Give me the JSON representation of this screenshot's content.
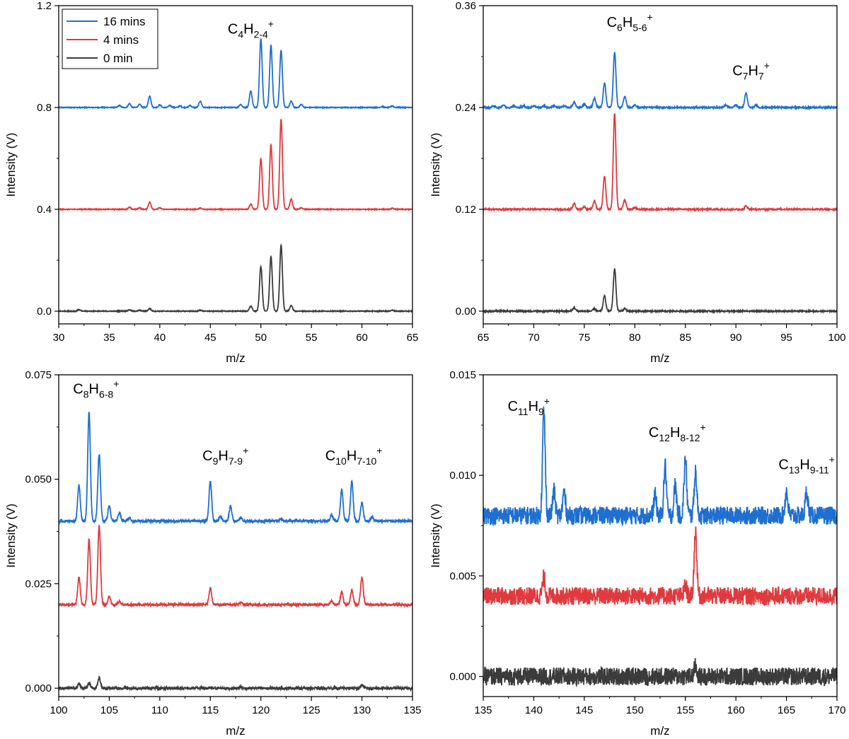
{
  "colors": {
    "16 mins": "#1f6fd1",
    "4 mins": "#e03a3e",
    "0 min": "#3b3b3b"
  },
  "legend": {
    "entries": [
      "16 mins",
      "4 mins",
      "0 min"
    ]
  },
  "chart_data": [
    {
      "type": "line",
      "xlabel": "m/z",
      "ylabel": "Intensity (V)",
      "xlim": [
        30,
        65
      ],
      "ylim": [
        -0.05,
        1.2
      ],
      "xticks": [
        "30",
        "35",
        "40",
        "45",
        "50",
        "55",
        "60",
        "65"
      ],
      "yticks": [
        "0.0",
        "0.4",
        "0.8",
        "1.2"
      ],
      "legend": "top-left",
      "series": [
        {
          "name": "16 mins",
          "baseline": 0.8,
          "noise": 0.0015,
          "peaks": [
            [
              36,
              0.008
            ],
            [
              37,
              0.015
            ],
            [
              38,
              0.012
            ],
            [
              39,
              0.045
            ],
            [
              40,
              0.01
            ],
            [
              41,
              0.008
            ],
            [
              42,
              0.006
            ],
            [
              43,
              0.008
            ],
            [
              44,
              0.025
            ],
            [
              48,
              0.012
            ],
            [
              49,
              0.065
            ],
            [
              50,
              0.27
            ],
            [
              51,
              0.245
            ],
            [
              52,
              0.225
            ],
            [
              53,
              0.025
            ],
            [
              54,
              0.012
            ],
            [
              62,
              0.004
            ],
            [
              63,
              0.006
            ]
          ]
        },
        {
          "name": "4 mins",
          "baseline": 0.4,
          "noise": 0.0015,
          "peaks": [
            [
              37,
              0.008
            ],
            [
              38,
              0.006
            ],
            [
              39,
              0.028
            ],
            [
              40,
              0.006
            ],
            [
              44,
              0.005
            ],
            [
              49,
              0.02
            ],
            [
              50,
              0.2
            ],
            [
              51,
              0.255
            ],
            [
              52,
              0.355
            ],
            [
              53,
              0.04
            ],
            [
              54,
              0.006
            ],
            [
              63,
              0.004
            ]
          ]
        },
        {
          "name": "0 min",
          "baseline": 0.0,
          "noise": 0.0015,
          "peaks": [
            [
              32,
              0.006
            ],
            [
              37,
              0.005
            ],
            [
              38,
              0.004
            ],
            [
              39,
              0.01
            ],
            [
              44,
              0.004
            ],
            [
              49,
              0.02
            ],
            [
              50,
              0.175
            ],
            [
              51,
              0.215
            ],
            [
              52,
              0.26
            ],
            [
              53,
              0.022
            ],
            [
              63,
              0.004
            ]
          ]
        }
      ],
      "annotations": [
        {
          "x": 49,
          "y": 1.09,
          "base": "C",
          "parts": [
            [
              "4",
              "sub"
            ],
            [
              "H",
              ""
            ],
            [
              "2-4",
              "sub"
            ],
            [
              "+",
              "sup"
            ]
          ]
        }
      ]
    },
    {
      "type": "line",
      "xlabel": "m/z",
      "ylabel": "Intensity (V)",
      "xlim": [
        65,
        100
      ],
      "ylim": [
        -0.015,
        0.36
      ],
      "xticks": [
        "65",
        "70",
        "75",
        "80",
        "85",
        "90",
        "95",
        "100"
      ],
      "yticks": [
        "0.00",
        "0.12",
        "0.24",
        "0.36"
      ],
      "series": [
        {
          "name": "16 mins",
          "baseline": 0.24,
          "noise": 0.0008,
          "peaks": [
            [
              66,
              0.002
            ],
            [
              67,
              0.003
            ],
            [
              68,
              0.002
            ],
            [
              69,
              0.002
            ],
            [
              70,
              0.002
            ],
            [
              71,
              0.002
            ],
            [
              72,
              0.002
            ],
            [
              73,
              0.002
            ],
            [
              74,
              0.006
            ],
            [
              75,
              0.004
            ],
            [
              76,
              0.011
            ],
            [
              77,
              0.029
            ],
            [
              78,
              0.065
            ],
            [
              79,
              0.013
            ],
            [
              80,
              0.003
            ],
            [
              89,
              0.003
            ],
            [
              90,
              0.003
            ],
            [
              91,
              0.017
            ],
            [
              92,
              0.003
            ]
          ]
        },
        {
          "name": "4 mins",
          "baseline": 0.12,
          "noise": 0.0008,
          "peaks": [
            [
              74,
              0.007
            ],
            [
              75,
              0.003
            ],
            [
              76,
              0.01
            ],
            [
              77,
              0.039
            ],
            [
              78,
              0.113
            ],
            [
              79,
              0.011
            ],
            [
              80,
              0.002
            ],
            [
              91,
              0.004
            ]
          ]
        },
        {
          "name": "0 min",
          "baseline": 0.0,
          "noise": 0.0008,
          "peaks": [
            [
              74,
              0.004
            ],
            [
              76,
              0.003
            ],
            [
              77,
              0.018
            ],
            [
              78,
              0.05
            ],
            [
              79,
              0.003
            ]
          ]
        }
      ],
      "annotations": [
        {
          "x": 79.5,
          "y": 0.335,
          "base": "C",
          "parts": [
            [
              "6",
              "sub"
            ],
            [
              "H",
              ""
            ],
            [
              "5-6",
              "sub"
            ],
            [
              "+",
              "sup"
            ]
          ]
        },
        {
          "x": 91.5,
          "y": 0.278,
          "base": "C",
          "parts": [
            [
              "7",
              "sub"
            ],
            [
              "H",
              ""
            ],
            [
              "7",
              "sub"
            ],
            [
              "+",
              "sup"
            ]
          ]
        }
      ]
    },
    {
      "type": "line",
      "xlabel": "m/z",
      "ylabel": "Intensity (V)",
      "xlim": [
        100,
        135
      ],
      "ylim": [
        -0.002,
        0.075
      ],
      "xticks": [
        "100",
        "105",
        "110",
        "115",
        "120",
        "125",
        "130",
        "135"
      ],
      "yticks": [
        "0.000",
        "0.025",
        "0.050",
        "0.075"
      ],
      "series": [
        {
          "name": "16 mins",
          "baseline": 0.04,
          "noise": 0.0003,
          "peaks": [
            [
              102,
              0.0085
            ],
            [
              103,
              0.026
            ],
            [
              104,
              0.016
            ],
            [
              105,
              0.0035
            ],
            [
              106,
              0.002
            ],
            [
              107,
              0.0008
            ],
            [
              115,
              0.0095
            ],
            [
              116,
              0.001
            ],
            [
              117,
              0.0035
            ],
            [
              118,
              0.0008
            ],
            [
              122,
              0.0005
            ],
            [
              127,
              0.0015
            ],
            [
              128,
              0.0075
            ],
            [
              129,
              0.0095
            ],
            [
              130,
              0.0045
            ],
            [
              131,
              0.001
            ]
          ]
        },
        {
          "name": "4 mins",
          "baseline": 0.02,
          "noise": 0.0003,
          "peaks": [
            [
              102,
              0.0065
            ],
            [
              103,
              0.0155
            ],
            [
              104,
              0.019
            ],
            [
              105,
              0.002
            ],
            [
              106,
              0.0008
            ],
            [
              115,
              0.004
            ],
            [
              118,
              0.0005
            ],
            [
              127,
              0.0008
            ],
            [
              128,
              0.003
            ],
            [
              129,
              0.0035
            ],
            [
              130,
              0.0065
            ]
          ]
        },
        {
          "name": "0 min",
          "baseline": 0.0,
          "noise": 0.0003,
          "peaks": [
            [
              102,
              0.001
            ],
            [
              103,
              0.0012
            ],
            [
              104,
              0.0025
            ],
            [
              118,
              0.0003
            ],
            [
              130,
              0.0008
            ]
          ]
        }
      ],
      "annotations": [
        {
          "x": 103.7,
          "y": 0.0705,
          "base": "C",
          "parts": [
            [
              "8",
              "sub"
            ],
            [
              "H",
              ""
            ],
            [
              "6-8",
              "sub"
            ],
            [
              "+",
              "sup"
            ]
          ]
        },
        {
          "x": 116.5,
          "y": 0.0545,
          "base": "C",
          "parts": [
            [
              "9",
              "sub"
            ],
            [
              "H",
              ""
            ],
            [
              "7-9",
              "sub"
            ],
            [
              "+",
              "sup"
            ]
          ]
        },
        {
          "x": 129.2,
          "y": 0.0545,
          "base": "C",
          "parts": [
            [
              "10",
              "sub"
            ],
            [
              "H",
              ""
            ],
            [
              "7-10",
              "sub"
            ],
            [
              "+",
              "sup"
            ]
          ]
        }
      ]
    },
    {
      "type": "line",
      "xlabel": "m/z",
      "ylabel": "Intensity (V)",
      "xlim": [
        135,
        170
      ],
      "ylim": [
        -0.001,
        0.015
      ],
      "xticks": [
        "135",
        "140",
        "145",
        "150",
        "155",
        "160",
        "165",
        "170"
      ],
      "yticks": [
        "0.000",
        "0.005",
        "0.010",
        "0.015"
      ],
      "series": [
        {
          "name": "16 mins",
          "baseline": 0.008,
          "noise": 0.00045,
          "peaks": [
            [
              141,
              0.0052
            ],
            [
              142,
              0.0012
            ],
            [
              143,
              0.0012
            ],
            [
              152,
              0.001
            ],
            [
              153,
              0.0025
            ],
            [
              154,
              0.0015
            ],
            [
              155,
              0.0028
            ],
            [
              156,
              0.0022
            ],
            [
              165,
              0.0012
            ],
            [
              167,
              0.0012
            ]
          ]
        },
        {
          "name": "4 mins",
          "baseline": 0.004,
          "noise": 0.00045,
          "peaks": [
            [
              141,
              0.0009
            ],
            [
              155,
              0.0005
            ],
            [
              156,
              0.0032
            ]
          ]
        },
        {
          "name": "0 min",
          "baseline": 0.0,
          "noise": 0.00045,
          "peaks": [
            [
              156,
              0.0005
            ]
          ]
        }
      ],
      "annotations": [
        {
          "x": 139.5,
          "y": 0.0132,
          "base": "C",
          "parts": [
            [
              "11",
              "sub"
            ],
            [
              "H",
              ""
            ],
            [
              "9",
              "sub"
            ],
            [
              "+",
              "sup"
            ]
          ]
        },
        {
          "x": 154.2,
          "y": 0.0119,
          "base": "C",
          "parts": [
            [
              "12",
              "sub"
            ],
            [
              "H",
              ""
            ],
            [
              "8-12",
              "sub"
            ],
            [
              "+",
              "sup"
            ]
          ]
        },
        {
          "x": 167,
          "y": 0.0103,
          "base": "C",
          "parts": [
            [
              "13",
              "sub"
            ],
            [
              "H",
              ""
            ],
            [
              "9-11",
              "sub"
            ],
            [
              "+",
              "sup"
            ]
          ]
        }
      ]
    }
  ]
}
